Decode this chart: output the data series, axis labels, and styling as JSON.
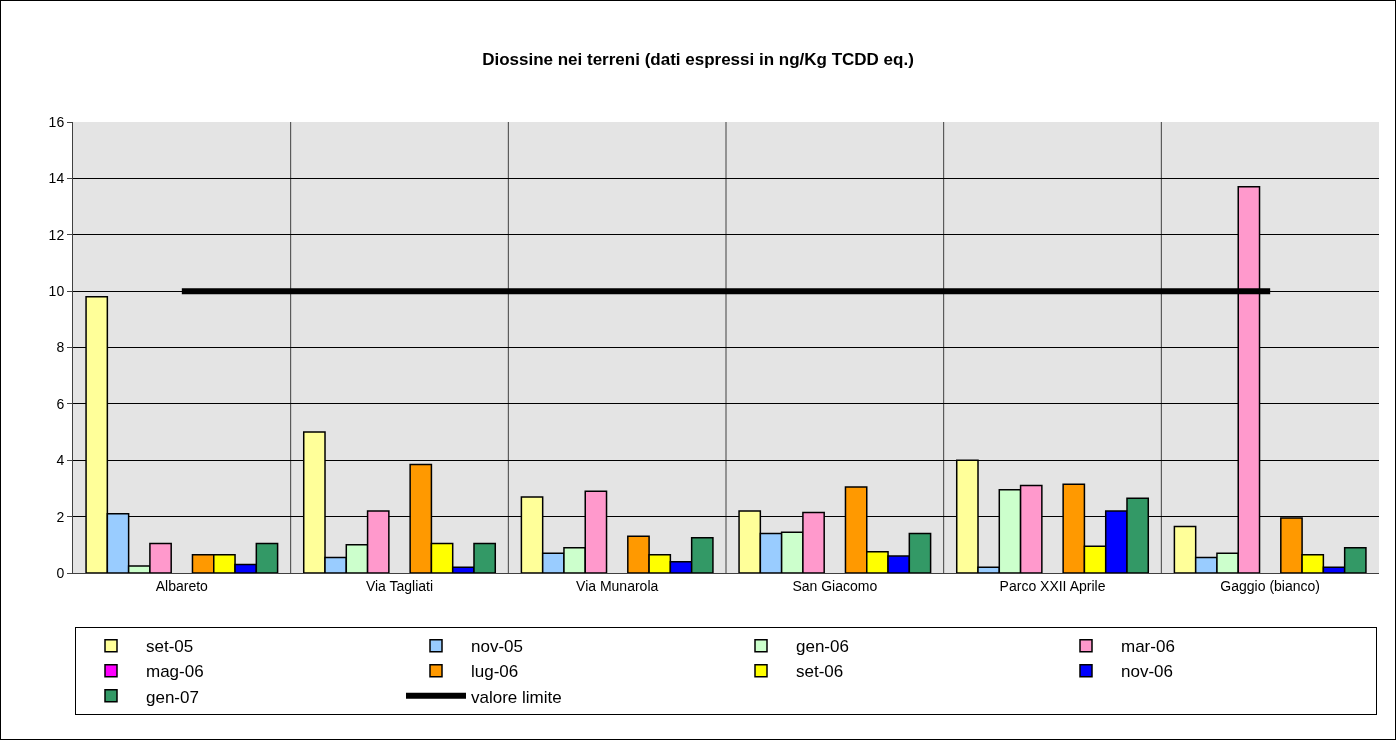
{
  "chart_data": {
    "type": "bar",
    "title": "Diossine nei terreni (dati espressi in ng/Kg TCDD eq.)",
    "categories": [
      "Albareto",
      "Via Tagliati",
      "Via Munarola",
      "San Giacomo",
      "Parco XXII Aprile",
      "Gaggio (bianco)"
    ],
    "series": [
      {
        "name": "set-05",
        "color": "#ffff99",
        "values": [
          9.8,
          5.0,
          2.7,
          2.2,
          4.0,
          1.65
        ]
      },
      {
        "name": "nov-05",
        "color": "#99ccff",
        "values": [
          2.1,
          0.55,
          0.7,
          1.4,
          0.2,
          0.55
        ]
      },
      {
        "name": "gen-06",
        "color": "#ccffcc",
        "values": [
          0.25,
          1.0,
          0.9,
          1.45,
          2.95,
          0.7
        ]
      },
      {
        "name": "mar-06",
        "color": "#ff99cc",
        "values": [
          1.05,
          2.2,
          2.9,
          2.15,
          3.1,
          13.7
        ]
      },
      {
        "name": "mag-06",
        "color": "#ff00ff",
        "values": [
          null,
          null,
          null,
          null,
          null,
          null
        ]
      },
      {
        "name": "lug-06",
        "color": "#ff9900",
        "values": [
          0.65,
          3.85,
          1.3,
          3.05,
          3.15,
          1.95
        ]
      },
      {
        "name": "set-06",
        "color": "#ffff00",
        "values": [
          0.65,
          1.05,
          0.65,
          0.75,
          0.95,
          0.65
        ]
      },
      {
        "name": "nov-06",
        "color": "#0000ff",
        "values": [
          0.3,
          0.2,
          0.4,
          0.6,
          2.2,
          0.2
        ]
      },
      {
        "name": "gen-07",
        "color": "#339966",
        "values": [
          1.05,
          1.05,
          1.25,
          1.4,
          2.65,
          0.9
        ]
      },
      {
        "name": "valore limite",
        "type": "line",
        "color": "#000000",
        "marker": "none",
        "line_style": "solid",
        "values": [
          10,
          10,
          10,
          10,
          10,
          10
        ]
      }
    ],
    "ylim": [
      0,
      16
    ],
    "yticks": [
      0,
      2,
      4,
      6,
      8,
      10,
      12,
      14,
      16
    ],
    "grid": true,
    "legend": "bottom"
  }
}
